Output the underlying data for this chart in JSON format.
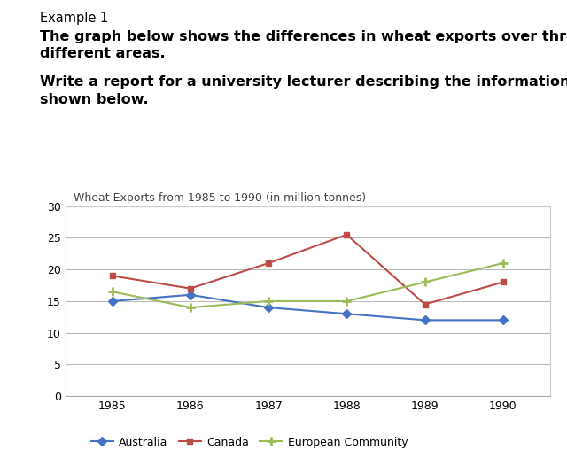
{
  "title": "Wheat Exports from 1985 to 1990 (in million tonnes)",
  "header_line1": "Example 1",
  "header_line2": "The graph below shows the differences in wheat exports over three\ndifferent areas.",
  "header_line3": "Write a report for a university lecturer describing the information\nshown below.",
  "years": [
    1985,
    1986,
    1987,
    1988,
    1989,
    1990
  ],
  "australia": [
    15,
    16,
    14,
    13,
    12,
    12
  ],
  "canada": [
    19,
    17,
    21,
    25.5,
    14.5,
    18
  ],
  "european_community": [
    16.5,
    14,
    15,
    15,
    18,
    21
  ],
  "australia_color": "#4472C4",
  "canada_color": "#BE4B48",
  "ec_color": "#9BBB59",
  "ylim": [
    0,
    30
  ],
  "yticks": [
    0,
    5,
    10,
    15,
    20,
    25,
    30
  ],
  "background_color": "#ffffff",
  "plot_bg_color": "#ffffff",
  "grid_color": "#bbbbbb",
  "header1_fontsize": 10.5,
  "header2_fontsize": 11.5,
  "header3_fontsize": 11.5,
  "title_fontsize": 9,
  "tick_fontsize": 9,
  "legend_fontsize": 9
}
